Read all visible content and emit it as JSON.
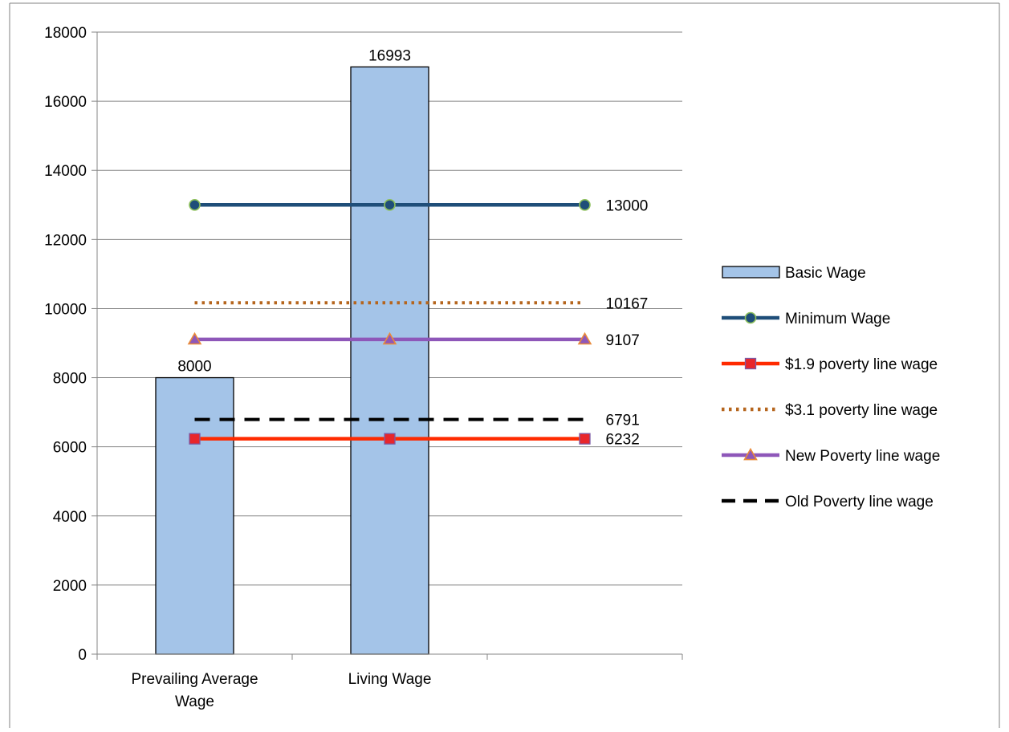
{
  "figure_title": "",
  "chart_data": {
    "type": "bar",
    "categories": [
      "Prevailing Average Wage",
      "Living Wage",
      ""
    ],
    "category_labels": [
      [
        "Prevailing Average",
        "Wage"
      ],
      [
        "Living Wage"
      ],
      []
    ],
    "ylim": [
      0,
      18000
    ],
    "yticks": [
      0,
      2000,
      4000,
      6000,
      8000,
      10000,
      12000,
      14000,
      16000,
      18000
    ],
    "grid": "horizontal",
    "legend_position": "right",
    "xlabel": "",
    "ylabel": "",
    "bars": {
      "name": "Basic Wage",
      "values": [
        8000,
        16993,
        null
      ],
      "data_labels": [
        "8000",
        "16993",
        ""
      ],
      "color": "#a4c4e8"
    },
    "lines": [
      {
        "name": "Minimum Wage",
        "value": 13000,
        "end_label": "13000",
        "color": "#1f4e79",
        "marker": "circle",
        "marker_fill": "#1f4e79",
        "marker_stroke": "#8cbf5a",
        "dash": "solid"
      },
      {
        "name": "$1.9 poverty line wage",
        "value": 6232,
        "end_label": "6232",
        "color": "#ff2a00",
        "marker": "square",
        "marker_fill": "#e8262b",
        "marker_stroke": "#7b5aa6",
        "dash": "solid"
      },
      {
        "name": "$3.1 poverty line wage",
        "value": 10167,
        "end_label": "10167",
        "color": "#b5651d",
        "marker": "none",
        "dash": "dotted"
      },
      {
        "name": "New Poverty line wage",
        "value": 9107,
        "end_label": "9107",
        "color": "#8e57b9",
        "marker": "triangle",
        "marker_fill": "#8e57b9",
        "marker_stroke": "#e98a3a",
        "dash": "solid"
      },
      {
        "name": "Old Poverty line wage",
        "value": 6791,
        "end_label": "6791",
        "color": "#000000",
        "marker": "none",
        "dash": "dashed"
      }
    ],
    "legend_order": [
      "Basic Wage",
      "Minimum Wage",
      "$1.9 poverty line wage",
      "$3.1 poverty line wage",
      "New Poverty line wage",
      "Old Poverty line wage"
    ]
  }
}
